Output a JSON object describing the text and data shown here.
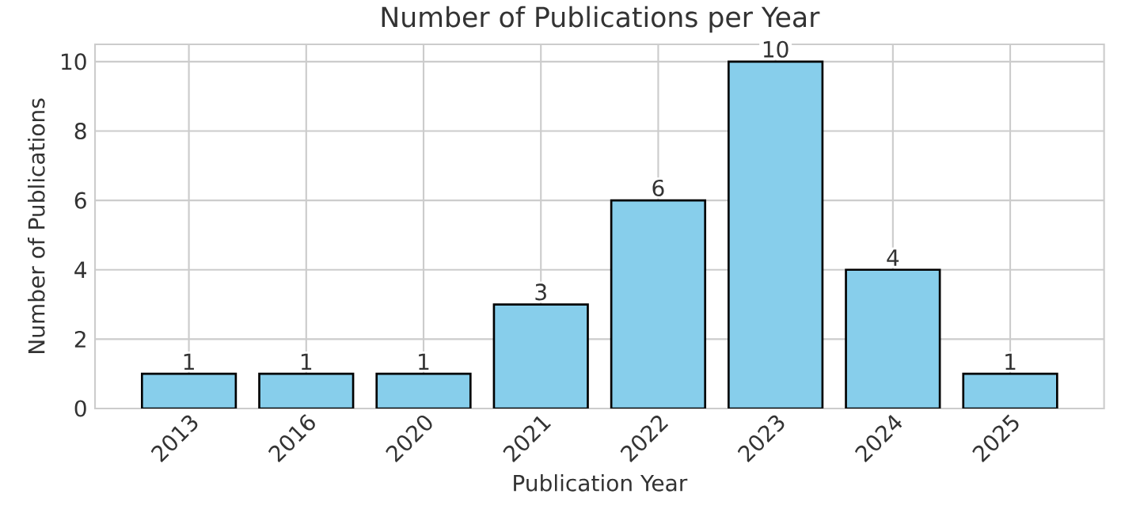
{
  "chart_data": {
    "type": "bar",
    "title": "Number of Publications per Year",
    "xlabel": "Publication Year",
    "ylabel": "Number of Publications",
    "categories": [
      "2013",
      "2016",
      "2020",
      "2021",
      "2022",
      "2023",
      "2024",
      "2025"
    ],
    "values": [
      1,
      1,
      1,
      3,
      6,
      10,
      4,
      1
    ],
    "color": "#87ceeb",
    "ylim": [
      0,
      10.5
    ],
    "yticks": [
      0,
      2,
      4,
      6,
      8,
      10
    ],
    "grid": true,
    "data_labels": true
  }
}
